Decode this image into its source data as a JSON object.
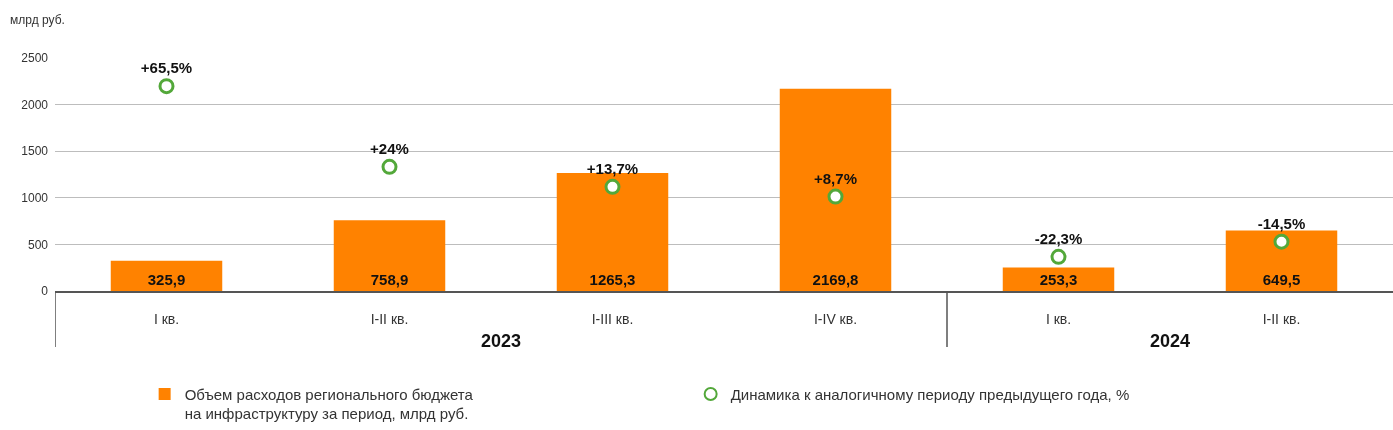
{
  "chart_data": {
    "type": "bar",
    "ylabel": "млрд руб.",
    "categories": [
      "I кв.",
      "I-II кв.",
      "I-III кв.",
      "I-IV кв.",
      "I кв.",
      "I-II кв."
    ],
    "series": [
      {
        "name": "Объем расходов регионального бюджета на инфраструктуру за период, млрд руб.",
        "color": "#ff8200",
        "values": [
          325.9,
          758.9,
          1265.3,
          2169.8,
          253.3,
          649.5
        ],
        "value_labels": [
          "325,9",
          "758,9",
          "1265,3",
          "2169,8",
          "253,3",
          "649,5"
        ]
      },
      {
        "name": "Динамика к аналогичному периоду предыдущего года, %",
        "type": "scatter",
        "axis": "y2",
        "color": "#53a83a",
        "values": [
          65.5,
          24,
          13.7,
          8.7,
          -22.3,
          -14.5
        ],
        "value_labels": [
          "+65,5%",
          "+24%",
          "+13,7%",
          "+8,7%",
          "-22,3%",
          "-14,5%"
        ]
      }
    ],
    "ylim": [
      0,
      2500
    ],
    "yticks": [
      0,
      500,
      1000,
      1500,
      2000,
      2500
    ],
    "grid": "y",
    "legend": "bottom",
    "marker": "circle",
    "annotations": [
      "2023",
      "2024"
    ]
  }
}
